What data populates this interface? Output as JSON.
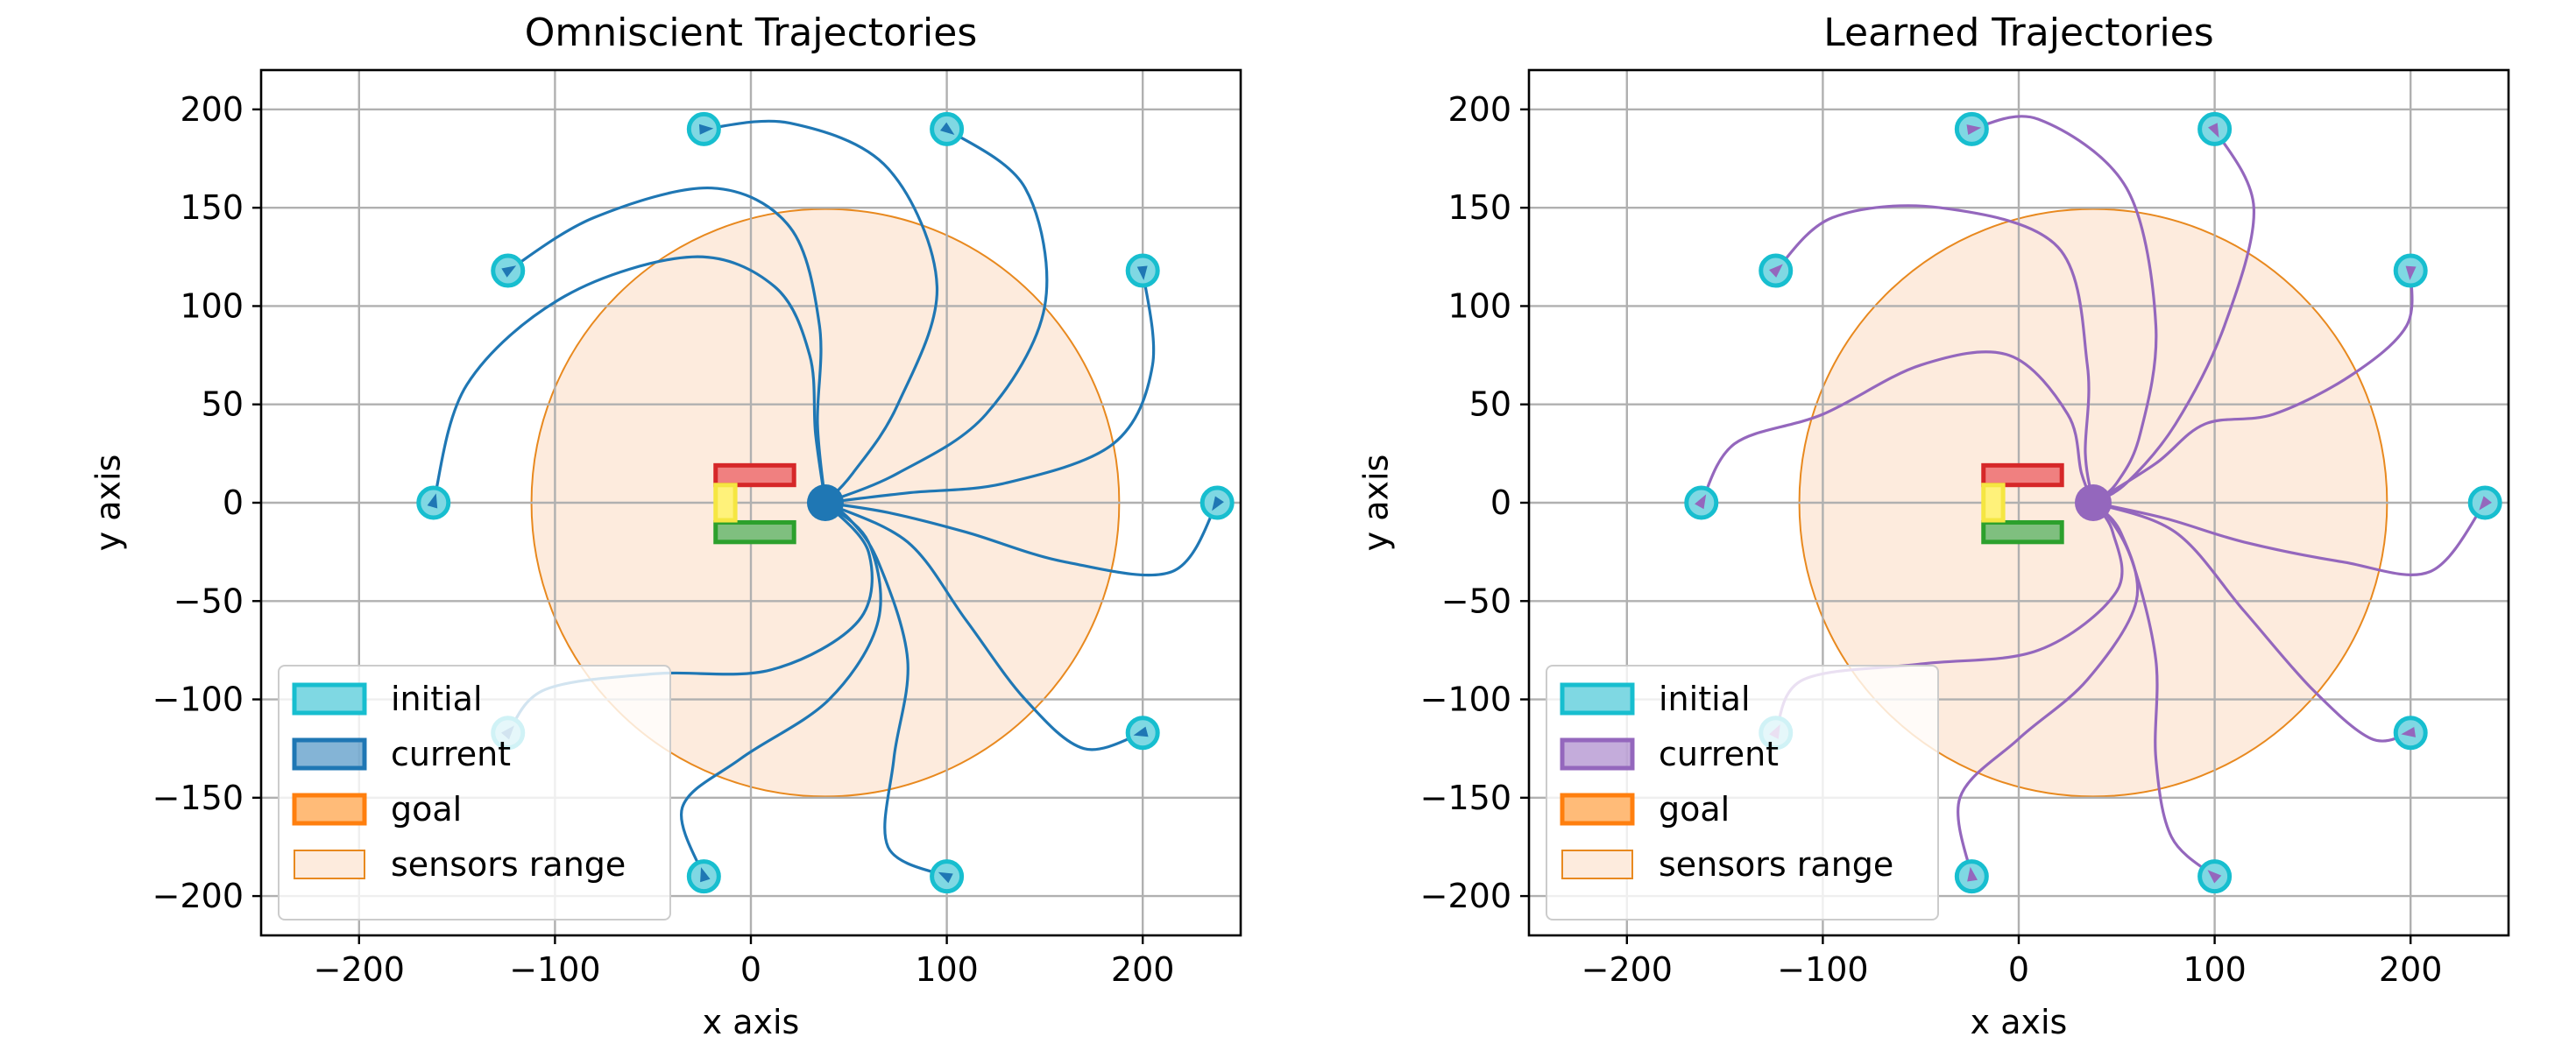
{
  "chart_data": [
    {
      "type": "line",
      "title": "Omniscient Trajectories",
      "xlabel": "x axis",
      "ylabel": "y axis",
      "xlim": [
        -250,
        250
      ],
      "ylim": [
        -220,
        220
      ],
      "xticks": [
        -200,
        -100,
        0,
        100,
        200
      ],
      "yticks": [
        -200,
        -150,
        -100,
        -50,
        0,
        50,
        100,
        150,
        200
      ],
      "xtick_labels": [
        "−200",
        "−100",
        "0",
        "100",
        "200"
      ],
      "ytick_labels": [
        "−200",
        "−150",
        "−100",
        "−50",
        "0",
        "50",
        "100",
        "150",
        "200"
      ],
      "grid": true,
      "legend_position": "lower-left",
      "colors": {
        "trajectory": "#1f77b4",
        "current_fill": "#1f77b4",
        "initial_fill": "#7fd8e3",
        "initial_edge": "#17becf",
        "goal_edge": "#ff7f0e",
        "goal_fill": "#ffbb78",
        "sensor_fill": "#fdebdd",
        "sensor_edge": "#e8891f"
      },
      "current": [
        38,
        0
      ],
      "sensor_range": {
        "center": [
          38,
          0
        ],
        "radius": 150
      },
      "obstacles": [
        {
          "x": -18,
          "y": 9,
          "w": 40,
          "h": 10,
          "edge": "#d62728",
          "fill": "#f08080"
        },
        {
          "x": -18,
          "y": -20,
          "w": 40,
          "h": 10,
          "edge": "#2ca02c",
          "fill": "#7fbf7f"
        },
        {
          "x": -18,
          "y": -9,
          "w": 10,
          "h": 18,
          "edge": "#f5e642",
          "fill": "#fff27a"
        }
      ],
      "trajectories": [
        {
          "start": [
            -162,
            0
          ],
          "points": [
            [
              -162,
              0
            ],
            [
              -145,
              60
            ],
            [
              -95,
              105
            ],
            [
              -30,
              125
            ],
            [
              12,
              110
            ],
            [
              30,
              75
            ],
            [
              33,
              35
            ],
            [
              38,
              0
            ]
          ]
        },
        {
          "start": [
            -124,
            118
          ],
          "points": [
            [
              -124,
              118
            ],
            [
              -80,
              145
            ],
            [
              -20,
              160
            ],
            [
              20,
              140
            ],
            [
              35,
              90
            ],
            [
              34,
              40
            ],
            [
              38,
              0
            ]
          ]
        },
        {
          "start": [
            -24,
            190
          ],
          "points": [
            [
              -24,
              190
            ],
            [
              20,
              193
            ],
            [
              70,
              170
            ],
            [
              95,
              110
            ],
            [
              75,
              50
            ],
            [
              52,
              15
            ],
            [
              38,
              0
            ]
          ]
        },
        {
          "start": [
            100,
            190
          ],
          "points": [
            [
              100,
              190
            ],
            [
              140,
              160
            ],
            [
              150,
              100
            ],
            [
              120,
              45
            ],
            [
              75,
              15
            ],
            [
              38,
              0
            ]
          ]
        },
        {
          "start": [
            200,
            118
          ],
          "points": [
            [
              200,
              118
            ],
            [
              205,
              70
            ],
            [
              185,
              30
            ],
            [
              130,
              10
            ],
            [
              80,
              5
            ],
            [
              38,
              0
            ]
          ]
        },
        {
          "start": [
            238,
            0
          ],
          "points": [
            [
              238,
              0
            ],
            [
              215,
              -35
            ],
            [
              160,
              -30
            ],
            [
              110,
              -15
            ],
            [
              70,
              -5
            ],
            [
              38,
              0
            ]
          ]
        },
        {
          "start": [
            200,
            -117
          ],
          "points": [
            [
              200,
              -117
            ],
            [
              170,
              -125
            ],
            [
              140,
              -100
            ],
            [
              110,
              -60
            ],
            [
              80,
              -20
            ],
            [
              38,
              0
            ]
          ]
        },
        {
          "start": [
            100,
            -190
          ],
          "points": [
            [
              100,
              -190
            ],
            [
              70,
              -175
            ],
            [
              73,
              -130
            ],
            [
              80,
              -80
            ],
            [
              65,
              -30
            ],
            [
              50,
              -8
            ],
            [
              38,
              0
            ]
          ]
        },
        {
          "start": [
            -24,
            -190
          ],
          "points": [
            [
              -24,
              -190
            ],
            [
              -35,
              -155
            ],
            [
              -5,
              -130
            ],
            [
              40,
              -100
            ],
            [
              65,
              -60
            ],
            [
              60,
              -20
            ],
            [
              38,
              0
            ]
          ]
        },
        {
          "start": [
            -124,
            -117
          ],
          "points": [
            [
              -124,
              -117
            ],
            [
              -105,
              -95
            ],
            [
              -50,
              -87
            ],
            [
              10,
              -85
            ],
            [
              55,
              -60
            ],
            [
              60,
              -25
            ],
            [
              38,
              0
            ]
          ]
        }
      ]
    },
    {
      "type": "line",
      "title": "Learned Trajectories",
      "xlabel": "x axis",
      "ylabel": "y axis",
      "xlim": [
        -250,
        250
      ],
      "ylim": [
        -220,
        220
      ],
      "xticks": [
        -200,
        -100,
        0,
        100,
        200
      ],
      "yticks": [
        -200,
        -150,
        -100,
        -50,
        0,
        50,
        100,
        150,
        200
      ],
      "xtick_labels": [
        "−200",
        "−100",
        "0",
        "100",
        "200"
      ],
      "ytick_labels": [
        "−200",
        "−150",
        "−100",
        "−50",
        "0",
        "50",
        "100",
        "150",
        "200"
      ],
      "grid": true,
      "legend_position": "lower-left",
      "colors": {
        "trajectory": "#9467bd",
        "current_fill": "#9467bd",
        "initial_fill": "#7fd8e3",
        "initial_edge": "#17becf",
        "goal_edge": "#ff7f0e",
        "goal_fill": "#ffbb78",
        "sensor_fill": "#fdebdd",
        "sensor_edge": "#e8891f"
      },
      "current": [
        38,
        0
      ],
      "sensor_range": {
        "center": [
          38,
          0
        ],
        "radius": 150
      },
      "obstacles": [
        {
          "x": -18,
          "y": 9,
          "w": 40,
          "h": 10,
          "edge": "#d62728",
          "fill": "#f08080"
        },
        {
          "x": -18,
          "y": -20,
          "w": 40,
          "h": 10,
          "edge": "#2ca02c",
          "fill": "#7fbf7f"
        },
        {
          "x": -18,
          "y": -9,
          "w": 10,
          "h": 18,
          "edge": "#f5e642",
          "fill": "#fff27a"
        }
      ],
      "trajectories": [
        {
          "start": [
            -162,
            0
          ],
          "points": [
            [
              -162,
              0
            ],
            [
              -145,
              30
            ],
            [
              -100,
              45
            ],
            [
              -50,
              70
            ],
            [
              -5,
              75
            ],
            [
              25,
              45
            ],
            [
              32,
              15
            ],
            [
              38,
              0
            ]
          ]
        },
        {
          "start": [
            -124,
            118
          ],
          "points": [
            [
              -124,
              118
            ],
            [
              -95,
              145
            ],
            [
              -40,
              150
            ],
            [
              20,
              130
            ],
            [
              35,
              70
            ],
            [
              34,
              25
            ],
            [
              38,
              0
            ]
          ]
        },
        {
          "start": [
            -24,
            190
          ],
          "points": [
            [
              -24,
              190
            ],
            [
              10,
              195
            ],
            [
              55,
              160
            ],
            [
              70,
              90
            ],
            [
              62,
              35
            ],
            [
              50,
              10
            ],
            [
              38,
              0
            ]
          ]
        },
        {
          "start": [
            100,
            190
          ],
          "points": [
            [
              100,
              190
            ],
            [
              120,
              150
            ],
            [
              105,
              90
            ],
            [
              80,
              40
            ],
            [
              55,
              10
            ],
            [
              38,
              0
            ]
          ]
        },
        {
          "start": [
            200,
            118
          ],
          "points": [
            [
              200,
              118
            ],
            [
              198,
              90
            ],
            [
              170,
              65
            ],
            [
              130,
              45
            ],
            [
              95,
              40
            ],
            [
              70,
              20
            ],
            [
              38,
              0
            ]
          ]
        },
        {
          "start": [
            238,
            0
          ],
          "points": [
            [
              238,
              0
            ],
            [
              210,
              -35
            ],
            [
              165,
              -30
            ],
            [
              115,
              -20
            ],
            [
              75,
              -8
            ],
            [
              38,
              0
            ]
          ]
        },
        {
          "start": [
            200,
            -117
          ],
          "points": [
            [
              200,
              -117
            ],
            [
              180,
              -120
            ],
            [
              150,
              -95
            ],
            [
              115,
              -55
            ],
            [
              80,
              -15
            ],
            [
              38,
              0
            ]
          ]
        },
        {
          "start": [
            100,
            -190
          ],
          "points": [
            [
              100,
              -190
            ],
            [
              78,
              -170
            ],
            [
              70,
              -130
            ],
            [
              70,
              -80
            ],
            [
              58,
              -30
            ],
            [
              45,
              -6
            ],
            [
              38,
              0
            ]
          ]
        },
        {
          "start": [
            -24,
            -190
          ],
          "points": [
            [
              -24,
              -190
            ],
            [
              -30,
              -150
            ],
            [
              0,
              -120
            ],
            [
              35,
              -90
            ],
            [
              60,
              -50
            ],
            [
              52,
              -15
            ],
            [
              38,
              0
            ]
          ]
        },
        {
          "start": [
            -124,
            -117
          ],
          "points": [
            [
              -124,
              -117
            ],
            [
              -110,
              -90
            ],
            [
              -50,
              -82
            ],
            [
              10,
              -75
            ],
            [
              50,
              -45
            ],
            [
              48,
              -15
            ],
            [
              38,
              0
            ]
          ]
        }
      ]
    }
  ],
  "legend": [
    {
      "key": "initial",
      "label": "initial"
    },
    {
      "key": "current",
      "label": "current"
    },
    {
      "key": "goal",
      "label": "goal"
    },
    {
      "key": "sensor",
      "label": "sensors range"
    }
  ]
}
